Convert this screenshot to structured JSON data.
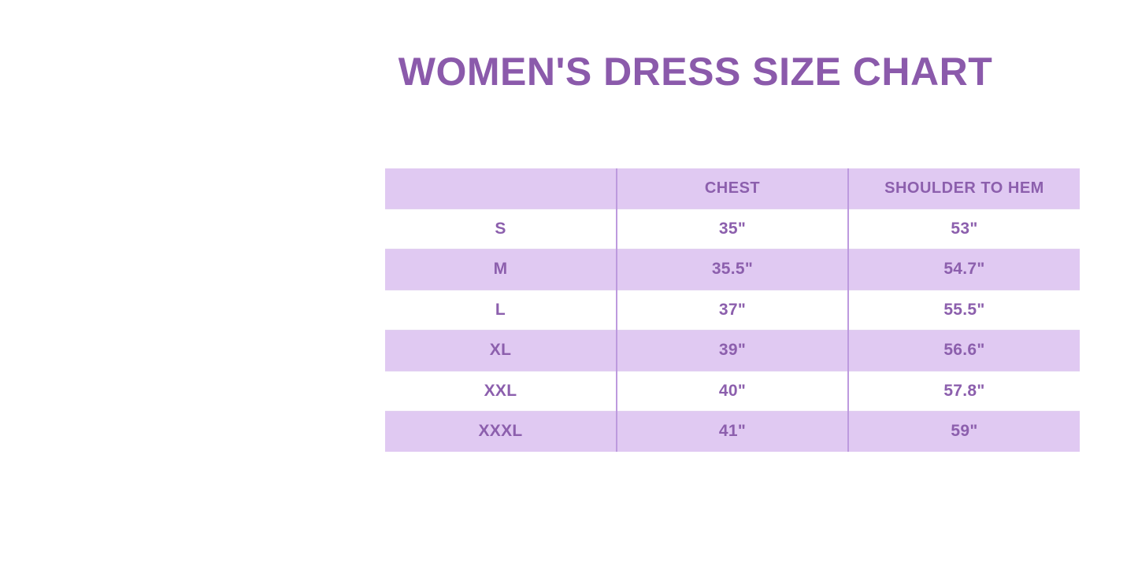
{
  "page": {
    "title": "WOMEN'S DRESS SIZE CHART"
  },
  "colors": {
    "background": "#ffffff",
    "title_text": "#8b5aab",
    "table_text": "#8c5fad",
    "row_lavender": "#e0c9f2",
    "column_divider": "#bd9ade"
  },
  "chart_data": {
    "type": "table",
    "title": "WOMEN'S DRESS SIZE CHART",
    "columns": [
      "",
      "CHEST",
      "SHOULDER TO HEM"
    ],
    "rows": [
      [
        "S",
        "35\"",
        "53\""
      ],
      [
        "M",
        "35.5\"",
        "54.7\""
      ],
      [
        "L",
        "37\"",
        "55.5\""
      ],
      [
        "XL",
        "39\"",
        "56.6\""
      ],
      [
        "XXL",
        "40\"",
        "57.8\""
      ],
      [
        "XXXL",
        "41\"",
        "59\""
      ]
    ],
    "layout": {
      "header_background": "lavender",
      "row_striping": "white / lavender alternating",
      "alignment": "center"
    }
  }
}
